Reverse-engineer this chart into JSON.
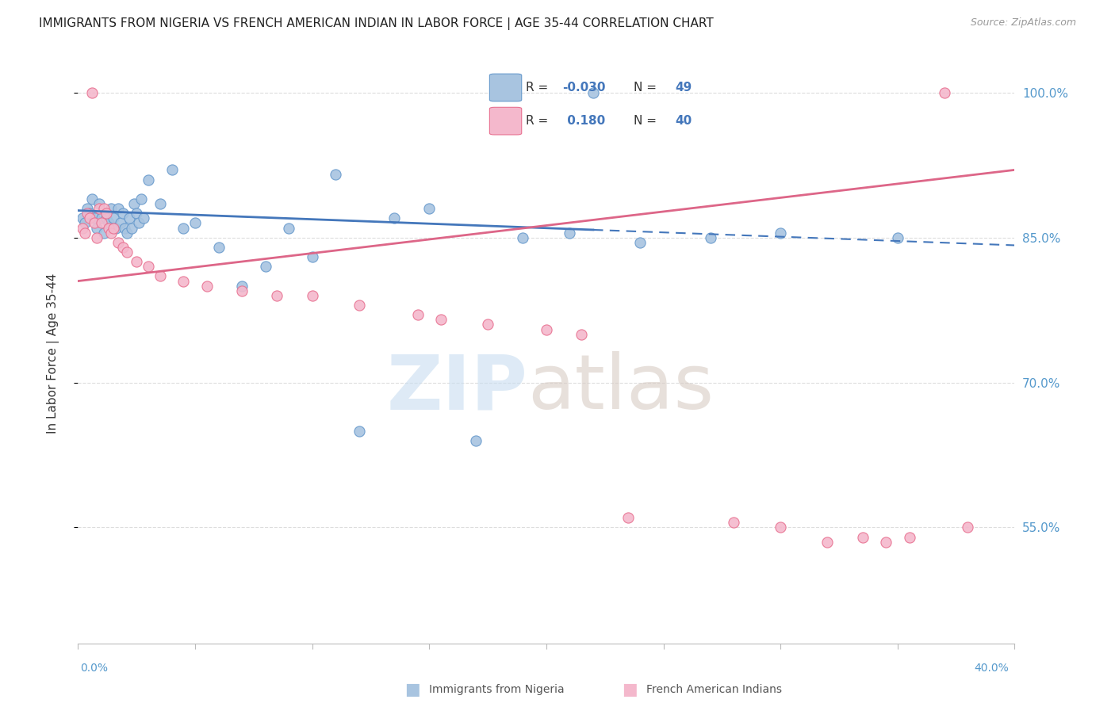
{
  "title": "IMMIGRANTS FROM NIGERIA VS FRENCH AMERICAN INDIAN IN LABOR FORCE | AGE 35-44 CORRELATION CHART",
  "source": "Source: ZipAtlas.com",
  "ylabel": "In Labor Force | Age 35-44",
  "xlim": [
    0.0,
    40.0
  ],
  "ylim": [
    43.0,
    103.0
  ],
  "yticks": [
    55.0,
    70.0,
    85.0,
    100.0
  ],
  "ytick_labels": [
    "55.0%",
    "70.0%",
    "85.0%",
    "100.0%"
  ],
  "blue_color": "#a8c4e0",
  "pink_color": "#f4b8cc",
  "blue_edge_color": "#6699cc",
  "pink_edge_color": "#e87090",
  "blue_line_color": "#4477bb",
  "pink_line_color": "#dd6688",
  "background_color": "#ffffff",
  "grid_color": "#dddddd",
  "blue_scatter_x": [
    0.2,
    0.3,
    0.4,
    0.5,
    0.6,
    0.7,
    0.8,
    0.9,
    1.0,
    1.1,
    1.2,
    1.3,
    1.4,
    1.5,
    1.6,
    1.7,
    1.8,
    1.9,
    2.0,
    2.1,
    2.2,
    2.3,
    2.4,
    2.5,
    2.6,
    2.7,
    2.8,
    3.0,
    3.5,
    4.0,
    4.5,
    5.0,
    6.0,
    7.0,
    8.0,
    9.0,
    10.0,
    11.0,
    12.0,
    13.5,
    15.0,
    17.0,
    19.0,
    21.0,
    22.0,
    24.0,
    27.0,
    30.0,
    35.0
  ],
  "blue_scatter_y": [
    87.0,
    86.5,
    88.0,
    87.5,
    89.0,
    87.0,
    86.0,
    88.5,
    87.0,
    85.5,
    87.0,
    86.5,
    88.0,
    87.0,
    86.0,
    88.0,
    86.5,
    87.5,
    86.0,
    85.5,
    87.0,
    86.0,
    88.5,
    87.5,
    86.5,
    89.0,
    87.0,
    91.0,
    88.5,
    92.0,
    86.0,
    86.5,
    84.0,
    80.0,
    82.0,
    86.0,
    83.0,
    91.5,
    65.0,
    87.0,
    88.0,
    64.0,
    85.0,
    85.5,
    100.0,
    84.5,
    85.0,
    85.5,
    85.0
  ],
  "pink_scatter_x": [
    0.2,
    0.3,
    0.4,
    0.5,
    0.6,
    0.7,
    0.8,
    0.9,
    1.0,
    1.1,
    1.2,
    1.3,
    1.4,
    1.5,
    1.7,
    1.9,
    2.1,
    2.5,
    3.0,
    3.5,
    4.5,
    5.5,
    7.0,
    8.5,
    10.0,
    12.0,
    14.5,
    15.5,
    17.5,
    20.0,
    21.5,
    23.5,
    28.0,
    30.0,
    32.0,
    33.5,
    34.5,
    35.5,
    37.0,
    38.0
  ],
  "pink_scatter_y": [
    86.0,
    85.5,
    87.5,
    87.0,
    100.0,
    86.5,
    85.0,
    88.0,
    86.5,
    88.0,
    87.5,
    86.0,
    85.5,
    86.0,
    84.5,
    84.0,
    83.5,
    82.5,
    82.0,
    81.0,
    80.5,
    80.0,
    79.5,
    79.0,
    79.0,
    78.0,
    77.0,
    76.5,
    76.0,
    75.5,
    75.0,
    56.0,
    55.5,
    55.0,
    53.5,
    54.0,
    53.5,
    54.0,
    100.0,
    55.0
  ],
  "blue_trend_x0": 0.0,
  "blue_trend_y0": 87.8,
  "blue_trend_x1": 22.0,
  "blue_trend_y1": 85.8,
  "blue_dash_x0": 22.0,
  "blue_dash_y0": 85.8,
  "blue_dash_x1": 40.0,
  "blue_dash_y1": 84.2,
  "pink_trend_x0": 0.0,
  "pink_trend_y0": 80.5,
  "pink_trend_x1": 40.0,
  "pink_trend_y1": 92.0
}
